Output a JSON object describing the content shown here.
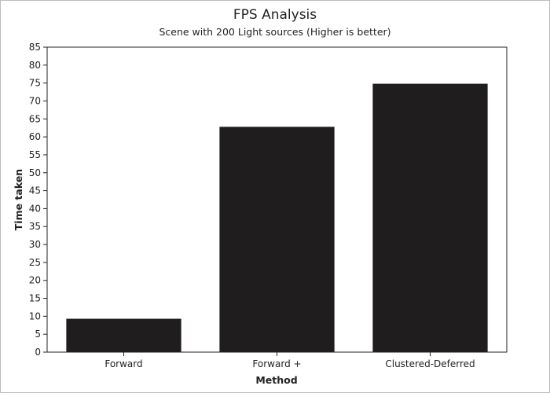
{
  "chart_data": {
    "type": "bar",
    "title": "FPS Analysis",
    "subtitle": "Scene with 200 Light sources (Higher is better)",
    "xlabel": "Method",
    "ylabel": "Time taken",
    "categories": [
      "Forward",
      "Forward +",
      "Clustered-Deferred"
    ],
    "values": [
      9.3,
      62.8,
      74.8
    ],
    "ylim": [
      0,
      85
    ],
    "yticks": [
      0,
      5,
      10,
      15,
      20,
      25,
      30,
      35,
      40,
      45,
      50,
      55,
      60,
      65,
      70,
      75,
      80,
      85
    ],
    "grid": false,
    "legend": "none",
    "bar_color": "#1f1d1e"
  }
}
